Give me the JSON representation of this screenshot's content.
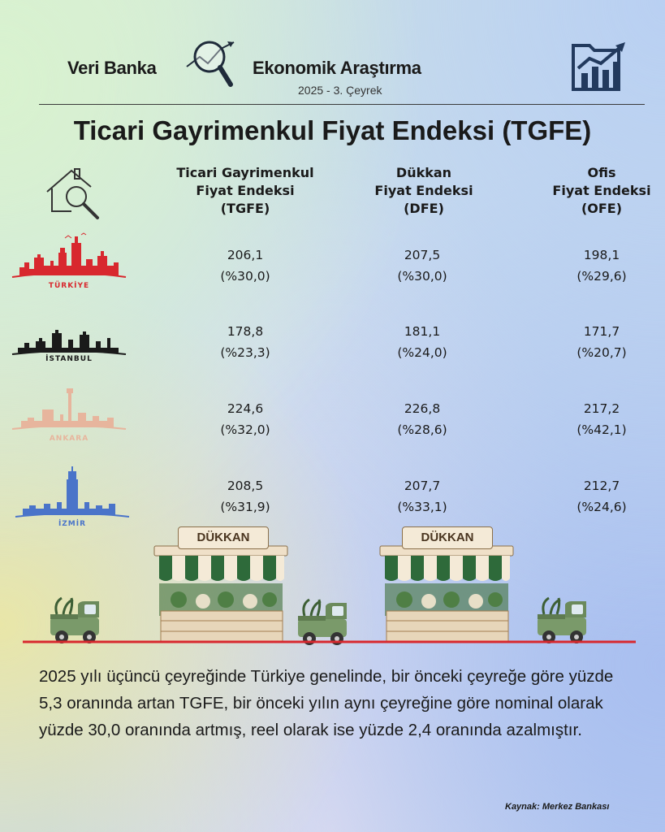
{
  "header": {
    "brand": "Veri Banka",
    "department": "Ekonomik Araştırma",
    "period": "2025 - 3. Çeyrek"
  },
  "title": "Ticari Gayrimenkul Fiyat Endeksi (TGFE)",
  "columns": [
    {
      "line1": "Ticari Gayrimenkul",
      "line2": "Fiyat Endeksi",
      "line3": "(TGFE)"
    },
    {
      "line1": "Dükkan",
      "line2": "Fiyat Endeksi",
      "line3": "(DFE)"
    },
    {
      "line1": "Ofis",
      "line2": "Fiyat Endeksi",
      "line3": "(OFE)"
    }
  ],
  "rows": [
    {
      "city": "TÜRKİYE",
      "color": "#d8282e",
      "values": [
        {
          "index": "206,1",
          "change": "(%30,0)"
        },
        {
          "index": "207,5",
          "change": "(%30,0)"
        },
        {
          "index": "198,1",
          "change": "(%29,6)"
        }
      ]
    },
    {
      "city": "İSTANBUL",
      "color": "#1a1a1a",
      "values": [
        {
          "index": "178,8",
          "change": "(%23,3)"
        },
        {
          "index": "181,1",
          "change": "(%24,0)"
        },
        {
          "index": "171,7",
          "change": "(%20,7)"
        }
      ]
    },
    {
      "city": "ANKARA",
      "color": "#e7b59d",
      "values": [
        {
          "index": "224,6",
          "change": "(%32,0)"
        },
        {
          "index": "226,8",
          "change": "(%28,6)"
        },
        {
          "index": "217,2",
          "change": "(%42,1)"
        }
      ]
    },
    {
      "city": "İZMİR",
      "color": "#4a74c9",
      "values": [
        {
          "index": "208,5",
          "change": "(%31,9)"
        },
        {
          "index": "207,7",
          "change": "(%33,1)"
        },
        {
          "index": "212,7",
          "change": "(%24,6)"
        }
      ]
    }
  ],
  "shop_sign": "DÜKKAN",
  "summary": "2025 yılı üçüncü çeyreğinde Türkiye genelinde, bir önceki çeyreğe göre yüzde 5,3 oranında artan TGFE, bir önceki yılın aynı çeyreğine göre nominal olarak yüzde 30,0 oranında artmış, reel olarak ise yüzde 2,4 oranında azalmıştır.",
  "source": "Kaynak: Merkez Bankası",
  "icons": [
    "magnifier-chart-icon",
    "bar-chart-growth-icon",
    "house-search-icon",
    "truck-icon"
  ],
  "colors": {
    "accent_red": "#d8282e",
    "navy": "#223a5e",
    "truck_green": "#7a9a6a",
    "awning_green": "#2e6a3a"
  }
}
